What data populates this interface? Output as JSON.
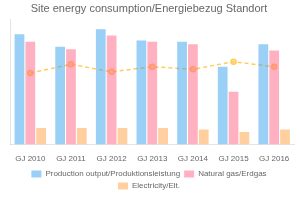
{
  "chart_data": {
    "type": "bar",
    "title": "Site energy consumption/Energiebezug Standort",
    "categories": [
      "GJ 2010",
      "GJ 2011",
      "GJ 2012",
      "GJ 2013",
      "GJ 2014",
      "GJ 2015",
      "GJ 2016"
    ],
    "series": [
      {
        "name": "Production output/Produktionsleistung",
        "values": [
          0.88,
          0.78,
          0.92,
          0.83,
          0.82,
          0.62,
          0.8
        ]
      },
      {
        "name": "Natural gas/Erdgas",
        "values": [
          0.82,
          0.76,
          0.87,
          0.82,
          0.8,
          0.42,
          0.75
        ]
      },
      {
        "name": "Electricity/Elt.",
        "values": [
          0.13,
          0.13,
          0.13,
          0.13,
          0.12,
          0.1,
          0.12
        ]
      },
      {
        "type": "line",
        "marker": "circle",
        "line_style": "dashed",
        "values": [
          0.57,
          0.64,
          0.58,
          0.62,
          0.6,
          0.66,
          0.62
        ]
      }
    ],
    "ylim": [
      0,
      1.0
    ],
    "grid": false,
    "tick_labels": "x",
    "legend": "bottom"
  }
}
